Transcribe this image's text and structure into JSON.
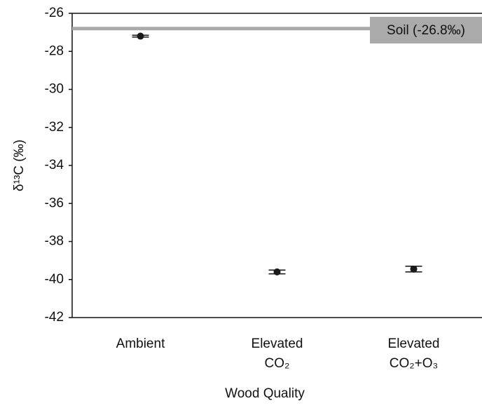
{
  "chart_data": {
    "type": "scatter",
    "categories": [
      "Ambient",
      "Elevated CO₂",
      "Elevated CO₂+O₃"
    ],
    "values": [
      -27.2,
      -39.6,
      -39.45
    ],
    "errors": [
      0.05,
      0.1,
      0.15
    ],
    "color": "#1a1a1a",
    "ylabel": "δ¹³C (‰)",
    "xlabel": "Wood Quality",
    "ylim": [
      -42,
      -26
    ],
    "yticks": [
      -26,
      -28,
      -30,
      -32,
      -34,
      -36,
      -38,
      -40,
      -42
    ],
    "reference_line": {
      "value": -26.8,
      "label": "Soil (-26.8‰)",
      "color": "#aaaaaa"
    }
  }
}
